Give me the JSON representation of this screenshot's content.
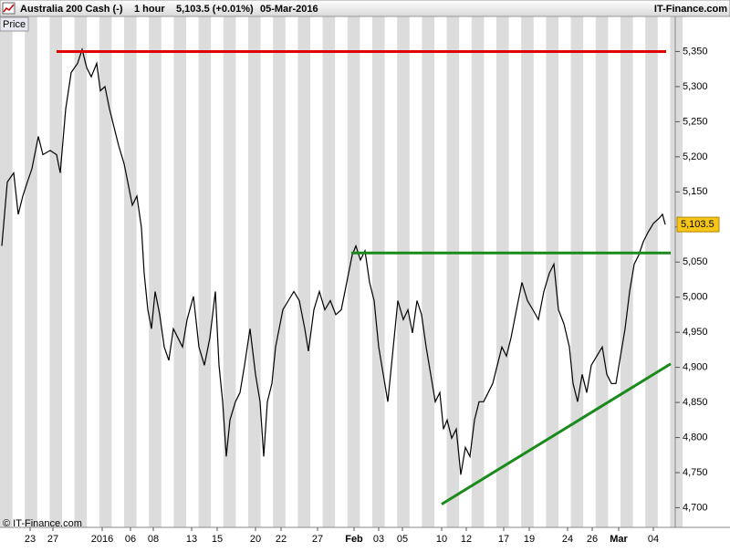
{
  "chart_data": {
    "type": "line",
    "title": "Australia 200 Cash (-)",
    "interval": "1 hour",
    "quote": "5,103.5 (+0.01%)",
    "date": "05-Mar-2016",
    "source": "IT-Finance.com",
    "y_label": "Price",
    "watermark": "© IT-Finance.com",
    "color": "#000000",
    "x": [
      2,
      8,
      15,
      20,
      25,
      30,
      35,
      42,
      47,
      55,
      62,
      66,
      72,
      78,
      85,
      90,
      95,
      100,
      106,
      110,
      115,
      120,
      125,
      130,
      136,
      140,
      145,
      150,
      155,
      158,
      162,
      166,
      170,
      175,
      180,
      185,
      190,
      195,
      200,
      205,
      212,
      218,
      224,
      230,
      236,
      240,
      244,
      248,
      252,
      258,
      263,
      268,
      274,
      280,
      285,
      289,
      293,
      298,
      302,
      310,
      316,
      322,
      328,
      334,
      338,
      344,
      350,
      356,
      362,
      368,
      374,
      380,
      386,
      390,
      395,
      400,
      405,
      410,
      415,
      420,
      425,
      430,
      436,
      442,
      447,
      452,
      457,
      462,
      467,
      472,
      477,
      482,
      486,
      490,
      495,
      500,
      505,
      510,
      515,
      520,
      525,
      530,
      535,
      540,
      545,
      550,
      555,
      560,
      566,
      572,
      578,
      584,
      590,
      596,
      602,
      607,
      612,
      618,
      624,
      628,
      633,
      638,
      643,
      648,
      654,
      660,
      665,
      670,
      675,
      680,
      685,
      690,
      695,
      700,
      705,
      710,
      716,
      722,
      726,
      729
    ],
    "values": [
      5073,
      5164,
      5177,
      5118,
      5144,
      5164,
      5183,
      5229,
      5203,
      5209,
      5203,
      5177,
      5268,
      5320,
      5333,
      5353,
      5327,
      5314,
      5333,
      5294,
      5300,
      5268,
      5242,
      5216,
      5190,
      5164,
      5131,
      5144,
      5099,
      5034,
      4982,
      4955,
      5008,
      4975,
      4929,
      4910,
      4955,
      4942,
      4929,
      4968,
      5001,
      4929,
      4903,
      4942,
      5008,
      4903,
      4851,
      4773,
      4825,
      4851,
      4864,
      4903,
      4955,
      4890,
      4851,
      4773,
      4851,
      4877,
      4929,
      4982,
      4995,
      5008,
      4995,
      4955,
      4923,
      4982,
      5008,
      4982,
      4995,
      4975,
      4982,
      5021,
      5060,
      5073,
      5053,
      5066,
      5021,
      4995,
      4929,
      4890,
      4851,
      4916,
      4995,
      4968,
      4982,
      4949,
      4995,
      4975,
      4929,
      4890,
      4851,
      4864,
      4812,
      4825,
      4799,
      4812,
      4747,
      4786,
      4773,
      4825,
      4851,
      4851,
      4864,
      4877,
      4903,
      4929,
      4916,
      4942,
      4982,
      5021,
      4995,
      4982,
      4968,
      5008,
      5034,
      5047,
      4982,
      4962,
      4929,
      4877,
      4851,
      4890,
      4864,
      4903,
      4916,
      4929,
      4890,
      4877,
      4877,
      4916,
      4955,
      5008,
      5047,
      5060,
      5079,
      5092,
      5105,
      5112,
      5118,
      5103.5
    ],
    "xlim": [
      0,
      740
    ],
    "ylim": [
      4672,
      5400
    ],
    "xticks": [
      {
        "value": 33,
        "label": "23"
      },
      {
        "value": 58,
        "label": "27"
      },
      {
        "value": 112,
        "label": "2016"
      },
      {
        "value": 143,
        "label": "06"
      },
      {
        "value": 168,
        "label": "08"
      },
      {
        "value": 210,
        "label": "13"
      },
      {
        "value": 238,
        "label": "15"
      },
      {
        "value": 280,
        "label": "20"
      },
      {
        "value": 308,
        "label": "22"
      },
      {
        "value": 348,
        "label": "27"
      },
      {
        "value": 388,
        "label": "Feb"
      },
      {
        "value": 415,
        "label": "03"
      },
      {
        "value": 441,
        "label": "05"
      },
      {
        "value": 484,
        "label": "10"
      },
      {
        "value": 511,
        "label": "12"
      },
      {
        "value": 552,
        "label": "17"
      },
      {
        "value": 580,
        "label": "19"
      },
      {
        "value": 622,
        "label": "24"
      },
      {
        "value": 649,
        "label": "26"
      },
      {
        "value": 678,
        "label": "Mar"
      },
      {
        "value": 716,
        "label": "04"
      }
    ],
    "yticks": [
      {
        "value": 4700,
        "label": "4,700"
      },
      {
        "value": 4750,
        "label": "4,750"
      },
      {
        "value": 4800,
        "label": "4,800"
      },
      {
        "value": 4850,
        "label": "4,850"
      },
      {
        "value": 4900,
        "label": "4,900"
      },
      {
        "value": 4950,
        "label": "4,950"
      },
      {
        "value": 5000,
        "label": "5,000"
      },
      {
        "value": 5050,
        "label": "5,050"
      },
      {
        "value": 5100,
        "label": "5,100"
      },
      {
        "value": 5150,
        "label": "5,150"
      },
      {
        "value": 5200,
        "label": "5,200"
      },
      {
        "value": 5250,
        "label": "5,250"
      },
      {
        "value": 5300,
        "label": "5,300"
      },
      {
        "value": 5350,
        "label": "5,350"
      }
    ],
    "lines": [
      {
        "color": "#e00000",
        "x": [
          62,
          730
        ],
        "y": [
          5350,
          5350
        ]
      },
      {
        "color": "#1a8a1a",
        "x": [
          385,
          735
        ],
        "y": [
          5063,
          5063
        ]
      },
      {
        "color": "#1a8a1a",
        "x": [
          484,
          735
        ],
        "y": [
          4705,
          4905
        ]
      }
    ],
    "price_tag": {
      "value": 5103.5,
      "label": "5,103.5"
    }
  }
}
